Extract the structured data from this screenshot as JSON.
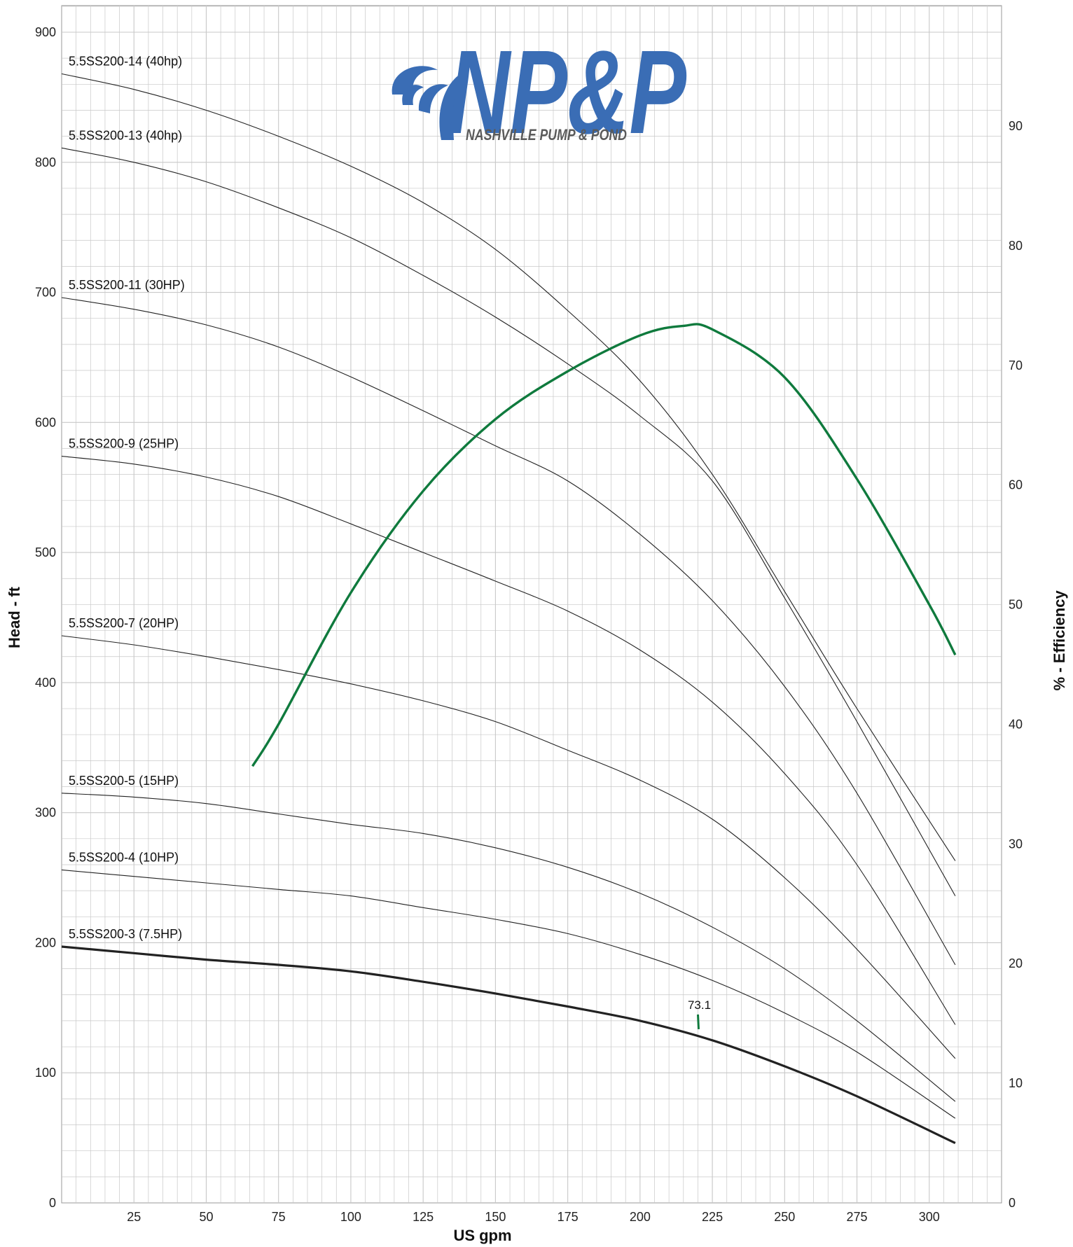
{
  "colors": {
    "grid": "#c8c8c8",
    "curve": "#222222",
    "efficiency": "#0f7a3d",
    "logo_blue": "#3a6db5",
    "logo_gray": "#5a5a5a"
  },
  "logo": {
    "mark": "NP&P",
    "tagline": "NASHVILLE PUMP & POND"
  },
  "chart_data": {
    "type": "line",
    "title": "",
    "xlabel": "US gpm",
    "ylabel": "Head - ft",
    "y2label": "% - Efficiency",
    "xlim": [
      0,
      325
    ],
    "ylim": [
      0,
      900
    ],
    "y2lim": [
      0,
      100
    ],
    "grid": true,
    "x_ticks": [
      25,
      50,
      75,
      100,
      125,
      150,
      175,
      200,
      225,
      250,
      275,
      300
    ],
    "y_ticks": [
      0,
      100,
      200,
      300,
      400,
      500,
      600,
      700,
      800,
      900
    ],
    "y2_ticks": [
      0,
      10,
      20,
      30,
      40,
      50,
      60,
      70,
      80,
      90
    ],
    "series": [
      {
        "name": "5.5SS200-14 (40hp)",
        "bold": false,
        "x": [
          0,
          25,
          50,
          75,
          100,
          125,
          150,
          175,
          200,
          225,
          250,
          275,
          309
        ],
        "y": [
          868,
          856,
          840,
          820,
          797,
          769,
          733,
          686,
          632,
          560,
          470,
          380,
          263
        ]
      },
      {
        "name": "5.5SS200-13 (40hp)",
        "bold": false,
        "x": [
          0,
          25,
          50,
          75,
          100,
          125,
          150,
          175,
          200,
          225,
          250,
          275,
          309
        ],
        "y": [
          811,
          800,
          785,
          765,
          742,
          713,
          681,
          645,
          605,
          555,
          465,
          370,
          236
        ]
      },
      {
        "name": "5.5SS200-11 (30HP)",
        "bold": false,
        "x": [
          0,
          25,
          50,
          75,
          100,
          125,
          150,
          175,
          200,
          225,
          250,
          275,
          309
        ],
        "y": [
          696,
          687,
          675,
          658,
          635,
          609,
          582,
          555,
          514,
          463,
          397,
          315,
          183
        ]
      },
      {
        "name": "5.5SS200-9 (25HP)",
        "bold": false,
        "x": [
          0,
          25,
          50,
          75,
          100,
          125,
          150,
          175,
          200,
          225,
          250,
          275,
          309
        ],
        "y": [
          574,
          568,
          558,
          543,
          522,
          500,
          478,
          455,
          425,
          385,
          330,
          260,
          137
        ]
      },
      {
        "name": "5.5SS200-7 (20HP)",
        "bold": false,
        "x": [
          0,
          25,
          50,
          75,
          100,
          125,
          150,
          175,
          200,
          225,
          250,
          275,
          309
        ],
        "y": [
          436,
          429,
          420,
          410,
          399,
          386,
          370,
          348,
          325,
          295,
          250,
          195,
          111
        ]
      },
      {
        "name": "5.5SS200-5 (15HP)",
        "bold": false,
        "x": [
          0,
          25,
          50,
          75,
          100,
          125,
          150,
          175,
          200,
          225,
          250,
          275,
          309
        ],
        "y": [
          315,
          312,
          307,
          299,
          291,
          284,
          273,
          258,
          238,
          212,
          180,
          140,
          78
        ]
      },
      {
        "name": "5.5SS200-4 (10HP)",
        "bold": false,
        "x": [
          0,
          25,
          50,
          75,
          100,
          125,
          150,
          175,
          200,
          225,
          250,
          275,
          309
        ],
        "y": [
          256,
          251,
          246,
          241,
          236,
          227,
          218,
          207,
          191,
          171,
          146,
          116,
          65
        ]
      },
      {
        "name": "5.5SS200-3 (7.5HP)",
        "bold": true,
        "x": [
          0,
          25,
          50,
          75,
          100,
          125,
          150,
          175,
          200,
          225,
          250,
          275,
          309
        ],
        "y": [
          197,
          192,
          187,
          183,
          178,
          170,
          161,
          151,
          140,
          125,
          105,
          82,
          46
        ]
      }
    ],
    "efficiency": {
      "x": [
        66,
        75,
        100,
        125,
        150,
        175,
        200,
        215,
        225,
        250,
        275,
        300,
        309
      ],
      "y": [
        36.5,
        40,
        51,
        59.5,
        65.5,
        69.5,
        72.5,
        73.3,
        73.0,
        69,
        60.5,
        50,
        45.8
      ]
    },
    "annotations": [
      {
        "text": "73.1",
        "x": 220.5,
        "y": 133
      }
    ]
  }
}
